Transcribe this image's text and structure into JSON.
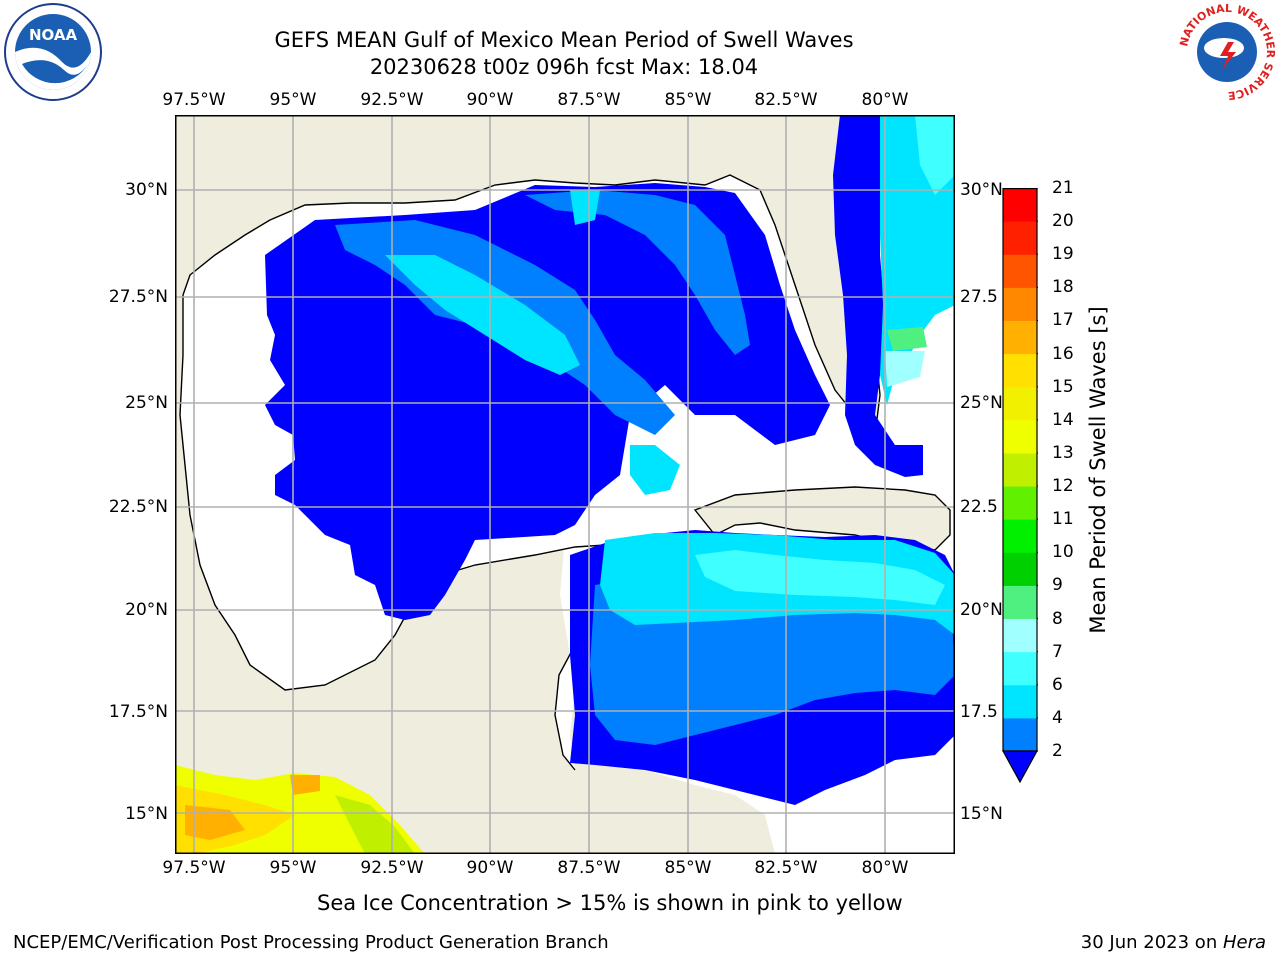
{
  "title": {
    "line1": "GEFS MEAN Gulf of Mexico Mean Period of Swell Waves",
    "line2": "20230628 t00z 096h fcst   Max: 18.04"
  },
  "logos": {
    "left": {
      "icon": "noaa-logo",
      "text": "NOAA"
    },
    "right": {
      "icon": "nws-logo",
      "ring_text": "NATIONAL WEATHER SERVICE"
    }
  },
  "map": {
    "lon_ticks_top": [
      "97.5°W",
      "95°W",
      "92.5°W",
      "90°W",
      "87.5°W",
      "85°W",
      "82.5°W",
      "80°W"
    ],
    "lon_ticks_bottom": [
      "97.5°W",
      "95°W",
      "92.5°W",
      "90°W",
      "87.5°W",
      "85°W",
      "82.5°W",
      "80°W"
    ],
    "lat_ticks_left": [
      "30°N",
      "27.5°N",
      "25°N",
      "22.5°N",
      "20°N",
      "17.5°N",
      "15°N"
    ],
    "lat_ticks_right": [
      "30°N",
      "27.5",
      "25°N",
      "22.5",
      "20°N",
      "17.5",
      "15°N"
    ],
    "extent": {
      "lon": [
        -98,
        -78.3
      ],
      "lat": [
        14.1,
        31.9
      ]
    },
    "colors": {
      "land": "#efedde",
      "ocean_missing": "#ffffff",
      "grid": "#b0b0b0"
    }
  },
  "colorbar": {
    "label": "Mean Period of Swell Waves [s]",
    "ticks": [
      "21",
      "20",
      "19",
      "18",
      "17",
      "16",
      "15",
      "14",
      "13",
      "12",
      "11",
      "10",
      "9",
      "8",
      "7",
      "6",
      "4",
      "2"
    ],
    "levels": [
      2,
      4,
      6,
      7,
      8,
      9,
      10,
      11,
      12,
      13,
      14,
      15,
      16,
      17,
      18,
      19,
      20,
      21
    ],
    "colors": [
      "#0000ff",
      "#0080ff",
      "#00e5ff",
      "#40ffff",
      "#a0ffff",
      "#50f080",
      "#00d000",
      "#00f000",
      "#60f000",
      "#c0f000",
      "#f0ff00",
      "#f0f000",
      "#ffe000",
      "#ffb000",
      "#ff8800",
      "#ff5500",
      "#ff2000",
      "#ff0000"
    ],
    "extend": "min"
  },
  "caption": "Sea Ice Concentration > 15% is shown in pink to yellow",
  "footer": {
    "left": "NCEP/EMC/Verification Post Processing Product Generation Branch",
    "date": "30 Jun 2023 on ",
    "machine": "Hera"
  }
}
